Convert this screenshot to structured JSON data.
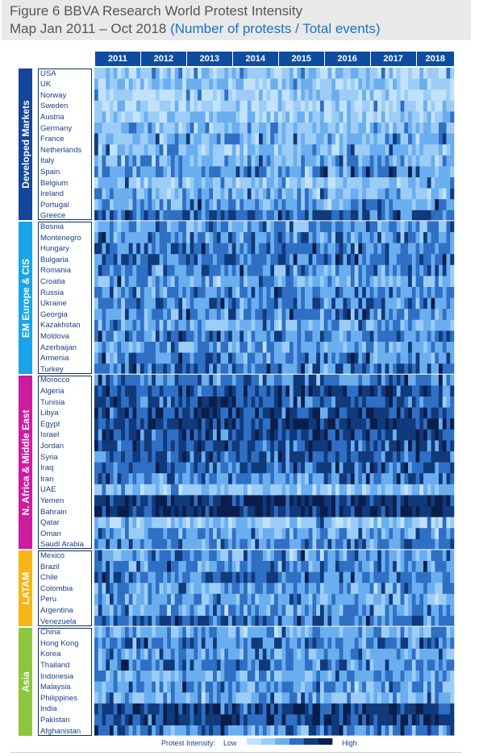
{
  "title": {
    "line1": "Figure 6 BBVA Research World Protest Intensity",
    "line2_main": "Map Jan 2011 – Oct  2018 ",
    "line2_sub": "(Number of protests / Total events)"
  },
  "legend": {
    "label": "Protest Intensity:",
    "low": "Low",
    "high": "High"
  },
  "colors": {
    "year_header": "#0d4da1",
    "scale": [
      "#c2e2fb",
      "#9ccdf6",
      "#6aaef0",
      "#2f6fc4",
      "#103a7c",
      "#0a1e4c"
    ],
    "regions": {
      "Developed Markets": "#16469a",
      "EM Europe & CIS": "#1aa3e8",
      "N. Africa & Middle East": "#cc1ca0",
      "LATAM": "#f7b617",
      "Asia": "#8cc63f"
    }
  },
  "chart_data": {
    "type": "heatmap",
    "title": "Figure 6 BBVA Research World Protest Intensity Map Jan 2011 – Oct  2018 (Number of protests / Total events)",
    "x_axis": {
      "start": "2011-01",
      "end": "2018-10",
      "months": 94,
      "tick_labels": [
        "2011",
        "2012",
        "2013",
        "2014",
        "2015",
        "2016",
        "2017",
        "2018"
      ]
    },
    "groups": [
      {
        "name": "Developed Markets",
        "countries": [
          "USA",
          "UK",
          "Norway",
          "Sweden",
          "Austria",
          "Germany",
          "France",
          "Netherlands",
          "Italy",
          "Spain",
          "Belgium",
          "Ireland",
          "Portugal",
          "Greece"
        ]
      },
      {
        "name": "EM Europe & CIS",
        "countries": [
          "Bosnia",
          "Montenegro",
          "Hungary",
          "Bulgaria",
          "Romania",
          "Croatia",
          "Russia",
          "Ukraine",
          "Georgia",
          "Kazakhstan",
          "Moldova",
          "Azerbaijan",
          "Armenia",
          "Turkey"
        ]
      },
      {
        "name": "N. Africa & Middle East",
        "countries": [
          "Morocco",
          "Algeria",
          "Tunisia",
          "Libya",
          "Egypt",
          "Israel",
          "Jordan",
          "Syria",
          "Iraq",
          "Iran",
          "UAE",
          "Yemen",
          "Bahrain",
          "Qatar",
          "Oman",
          "Saudi Arabia"
        ]
      },
      {
        "name": "LATAM",
        "countries": [
          "Mexico",
          "Brazil",
          "Chile",
          "Colombia",
          "Peru",
          "Argentina",
          "Venezuela"
        ]
      },
      {
        "name": "Asia",
        "countries": [
          "China",
          "Hong Kong",
          "Korea",
          "Thailand",
          "Indonesia",
          "Malaysia",
          "Philippines",
          "India",
          "Pakistan",
          "Afghanistan"
        ]
      }
    ],
    "intensity_scale": {
      "low": "Low",
      "high": "High",
      "levels": 6
    },
    "row_intensity": {
      "USA": 1.2,
      "UK": 1.0,
      "Norway": 0.6,
      "Sweden": 0.6,
      "Austria": 0.9,
      "Germany": 1.5,
      "France": 1.6,
      "Netherlands": 1.4,
      "Italy": 1.9,
      "Spain": 2.4,
      "Belgium": 1.3,
      "Ireland": 1.6,
      "Portugal": 2.3,
      "Greece": 3.2,
      "Bosnia": 2.1,
      "Montenegro": 2.5,
      "Hungary": 2.8,
      "Bulgaria": 3.0,
      "Romania": 2.6,
      "Croatia": 2.1,
      "Russia": 2.6,
      "Ukraine": 2.8,
      "Georgia": 2.6,
      "Kazakhstan": 2.0,
      "Moldova": 2.7,
      "Azerbaijan": 2.2,
      "Armenia": 2.6,
      "Turkey": 2.8,
      "Morocco": 2.6,
      "Algeria": 3.5,
      "Tunisia": 3.4,
      "Libya": 3.8,
      "Egypt": 4.0,
      "Israel": 3.6,
      "Jordan": 3.4,
      "Syria": 3.4,
      "Iraq": 3.3,
      "Iran": 2.6,
      "UAE": 1.3,
      "Yemen": 4.2,
      "Bahrain": 4.3,
      "Qatar": 1.1,
      "Oman": 2.3,
      "Saudi Arabia": 2.6,
      "Mexico": 2.2,
      "Brazil": 2.6,
      "Chile": 2.7,
      "Colombia": 2.0,
      "Peru": 2.0,
      "Argentina": 2.3,
      "Venezuela": 3.2,
      "China": 1.9,
      "Hong Kong": 2.8,
      "Korea": 1.9,
      "Thailand": 2.6,
      "Indonesia": 2.0,
      "Malaysia": 2.2,
      "Philippines": 1.9,
      "India": 3.9,
      "Pakistan": 3.9,
      "Afghanistan": 2.6
    }
  }
}
